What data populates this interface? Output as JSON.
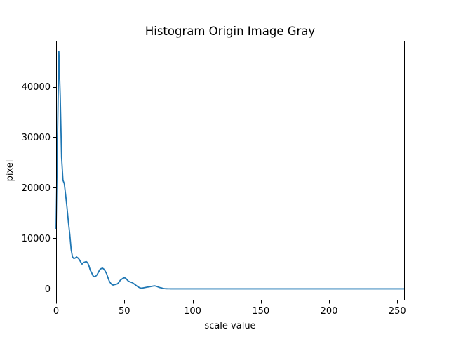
{
  "chart_data": {
    "type": "line",
    "title": "Histogram Origin Image Gray",
    "xlabel": "scale value",
    "ylabel": "pixel",
    "xlim": [
      0,
      255
    ],
    "ylim": [
      -2300,
      49100
    ],
    "xticks": [
      0,
      50,
      100,
      150,
      200,
      250
    ],
    "yticks": [
      0,
      10000,
      20000,
      30000,
      40000
    ],
    "xtick_labels": [
      "0",
      "50",
      "100",
      "150",
      "200",
      "250"
    ],
    "ytick_labels": [
      "0",
      "10000",
      "20000",
      "30000",
      "40000"
    ],
    "grid": false,
    "legend": null,
    "series": [
      {
        "color": "#1f77b4",
        "x": [
          0,
          1,
          2,
          3,
          4,
          5,
          6,
          7,
          8,
          9,
          10,
          11,
          12,
          13,
          14,
          15,
          16,
          17,
          18,
          19,
          20,
          21,
          22,
          23,
          24,
          25,
          26,
          27,
          28,
          29,
          30,
          31,
          32,
          33,
          34,
          35,
          36,
          37,
          38,
          39,
          40,
          41,
          42,
          43,
          44,
          45,
          46,
          47,
          48,
          49,
          50,
          51,
          52,
          53,
          54,
          55,
          56,
          57,
          58,
          59,
          60,
          61,
          62,
          63,
          64,
          65,
          66,
          67,
          68,
          69,
          70,
          71,
          72,
          73,
          74,
          75,
          76,
          77,
          78,
          79,
          80,
          81,
          82,
          83,
          84,
          85,
          86,
          87,
          88,
          89,
          90,
          100,
          150,
          200,
          255
        ],
        "y": [
          12000,
          30000,
          47000,
          38000,
          26000,
          21500,
          20800,
          18500,
          16000,
          13200,
          10800,
          7800,
          6300,
          6000,
          6100,
          6300,
          6100,
          5800,
          5300,
          4900,
          5200,
          5300,
          5400,
          5200,
          4600,
          3700,
          3200,
          2600,
          2400,
          2500,
          2800,
          3300,
          3800,
          4000,
          4100,
          3900,
          3500,
          3000,
          2200,
          1500,
          1100,
          800,
          750,
          850,
          900,
          1000,
          1300,
          1700,
          1900,
          2100,
          2200,
          2100,
          1800,
          1500,
          1400,
          1300,
          1200,
          1000,
          800,
          600,
          400,
          250,
          150,
          150,
          200,
          250,
          300,
          350,
          400,
          450,
          500,
          550,
          600,
          550,
          450,
          350,
          250,
          200,
          120,
          60,
          30,
          20,
          10,
          5,
          0,
          0,
          0,
          0,
          0,
          0,
          0,
          0,
          0,
          0,
          0
        ]
      }
    ]
  }
}
